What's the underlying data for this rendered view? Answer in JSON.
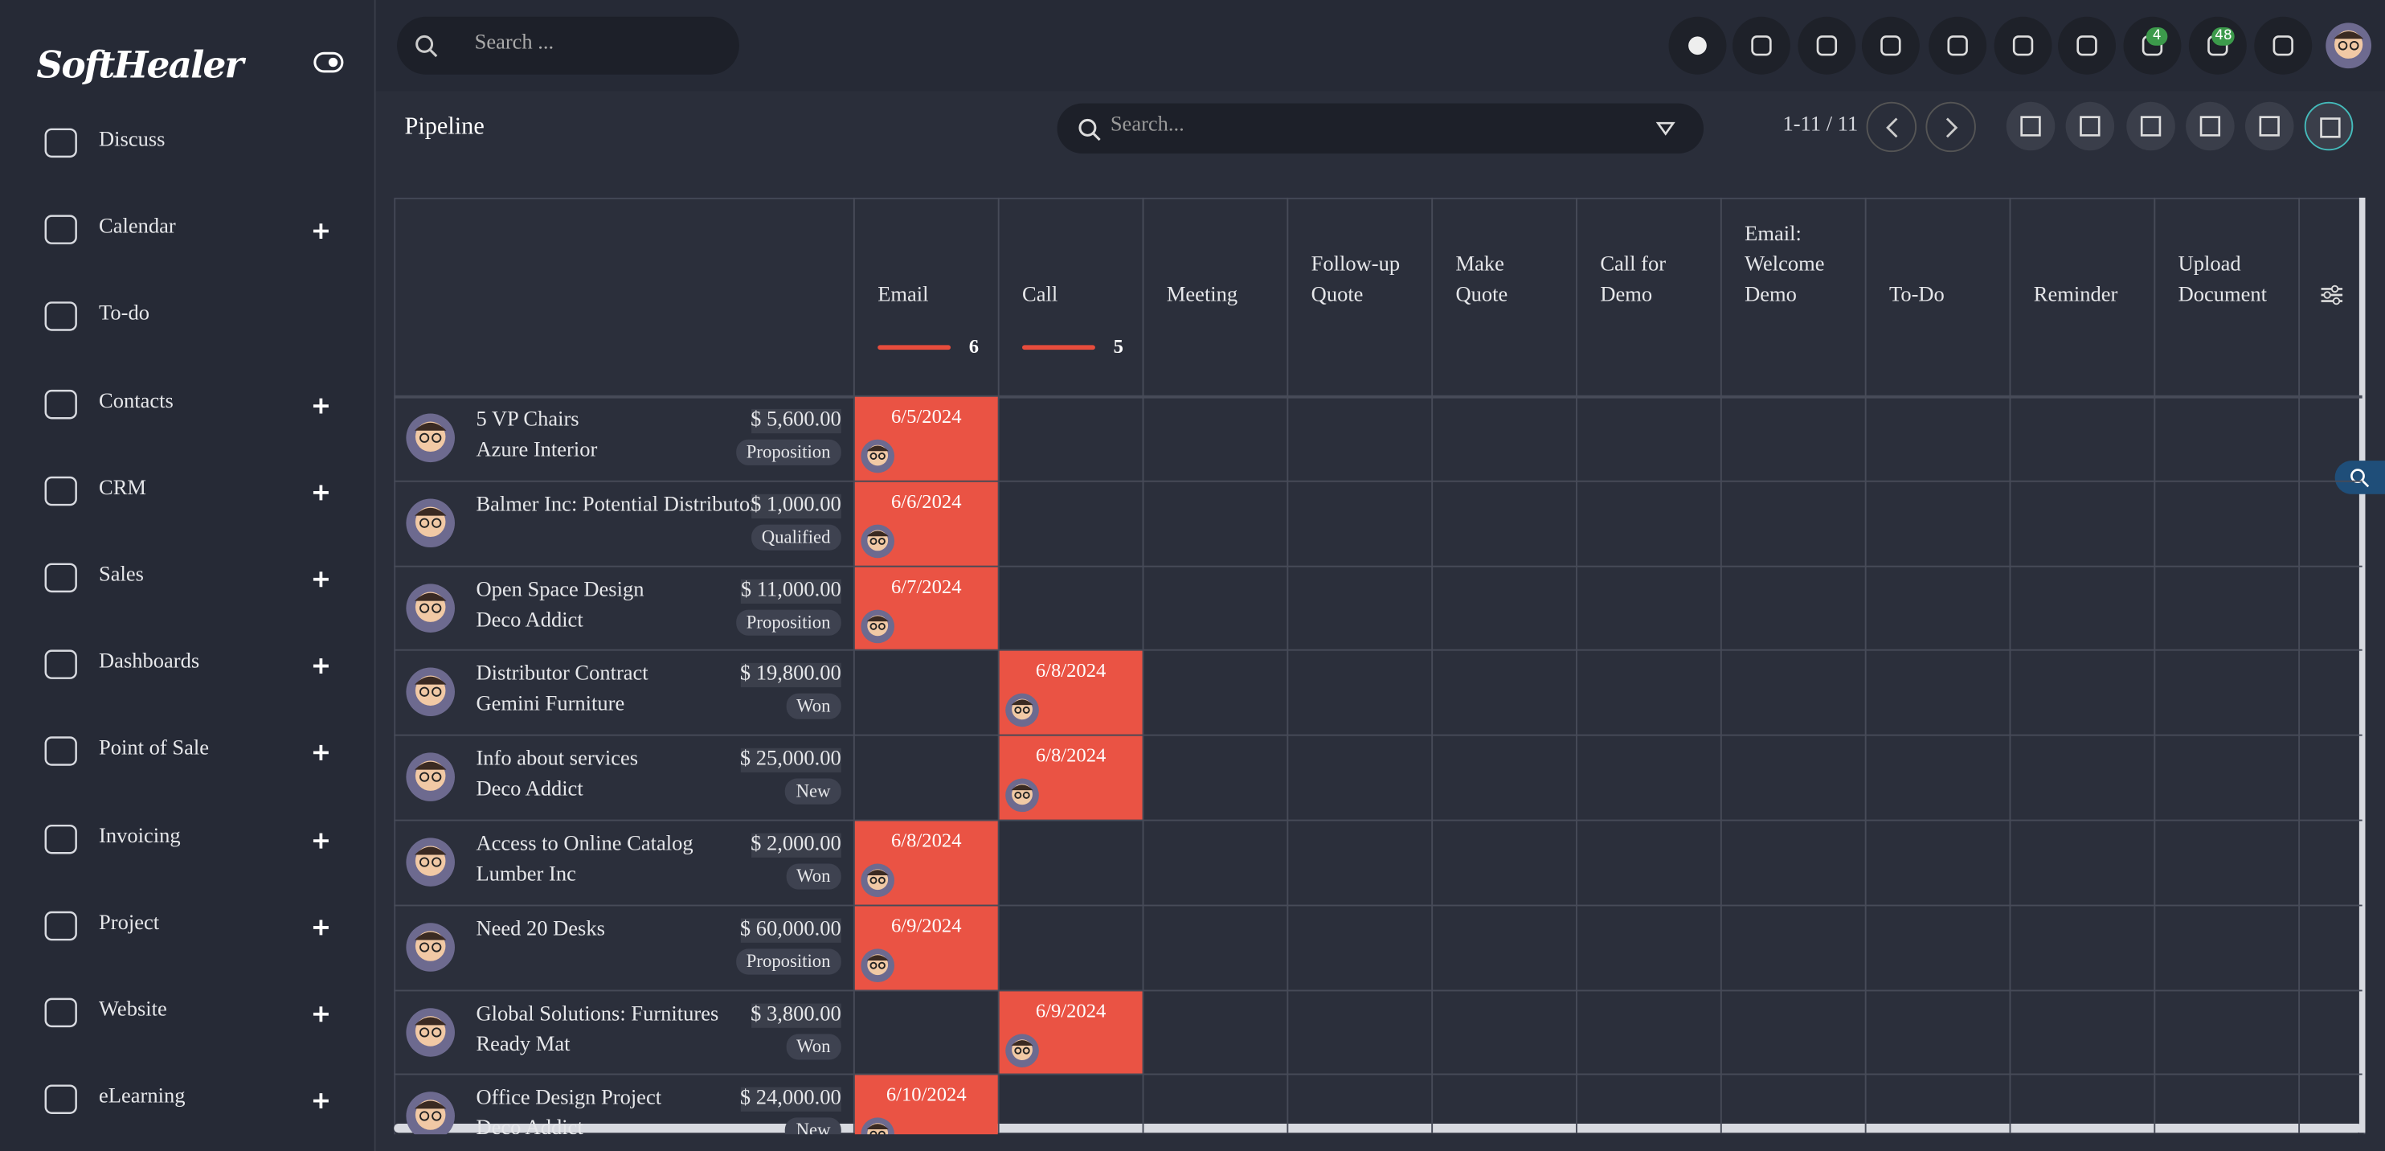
{
  "logo": "SoftHealer",
  "sidebar": [
    {
      "label": "Discuss",
      "expandable": false
    },
    {
      "label": "Calendar",
      "expandable": true
    },
    {
      "label": "To-do",
      "expandable": false
    },
    {
      "label": "Contacts",
      "expandable": true
    },
    {
      "label": "CRM",
      "expandable": true
    },
    {
      "label": "Sales",
      "expandable": true
    },
    {
      "label": "Dashboards",
      "expandable": true
    },
    {
      "label": "Point of Sale",
      "expandable": true
    },
    {
      "label": "Invoicing",
      "expandable": true
    },
    {
      "label": "Project",
      "expandable": true
    },
    {
      "label": "Website",
      "expandable": true
    },
    {
      "label": "eLearning",
      "expandable": true
    }
  ],
  "topbar": {
    "search_placeholder": "Search ...",
    "badges": [
      4,
      48
    ]
  },
  "control": {
    "title": "Pipeline",
    "search_placeholder": "Search...",
    "pager": "1-11 / 11"
  },
  "columns": [
    {
      "label": "Email",
      "count": 6
    },
    {
      "label": "Call",
      "count": 5
    },
    {
      "label": "Meeting"
    },
    {
      "label": "Follow-up Quote"
    },
    {
      "label": "Make Quote"
    },
    {
      "label": "Call for Demo"
    },
    {
      "label": "Email: Welcome Demo"
    },
    {
      "label": "To-Do"
    },
    {
      "label": "Reminder"
    },
    {
      "label": "Upload Document"
    }
  ],
  "rows": [
    {
      "name": "5 VP Chairs",
      "customer": "Azure Interior",
      "amount": "$ 5,600.00",
      "stage": "Proposition",
      "cells": [
        "6/5/2024"
      ]
    },
    {
      "name": "Balmer Inc: Potential Distributor",
      "amount": "$ 1,000.00",
      "stage": "Qualified",
      "cells": [
        "6/6/2024"
      ]
    },
    {
      "name": "Open Space Design",
      "customer": "Deco Addict",
      "amount": "$ 11,000.00",
      "stage": "Proposition",
      "cells": [
        "6/7/2024"
      ]
    },
    {
      "name": "Distributor Contract",
      "customer": "Gemini Furniture",
      "amount": "$ 19,800.00",
      "stage": "Won",
      "cells": [
        null,
        "6/8/2024"
      ]
    },
    {
      "name": "Info about services",
      "customer": "Deco Addict",
      "amount": "$ 25,000.00",
      "stage": "New",
      "cells": [
        null,
        "6/8/2024"
      ]
    },
    {
      "name": "Access to Online Catalog",
      "customer": "Lumber Inc",
      "amount": "$ 2,000.00",
      "stage": "Won",
      "cells": [
        "6/8/2024"
      ]
    },
    {
      "name": "Need 20 Desks",
      "amount": "$ 60,000.00",
      "stage": "Proposition",
      "cells": [
        "6/9/2024"
      ]
    },
    {
      "name": "Global Solutions: Furnitures",
      "customer": "Ready Mat",
      "amount": "$ 3,800.00",
      "stage": "Won",
      "cells": [
        null,
        "6/9/2024"
      ]
    },
    {
      "name": "Office Design Project",
      "customer": "Deco Addict",
      "amount": "$ 24,000.00",
      "stage": "New",
      "cells": [
        "6/10/2024"
      ]
    }
  ]
}
